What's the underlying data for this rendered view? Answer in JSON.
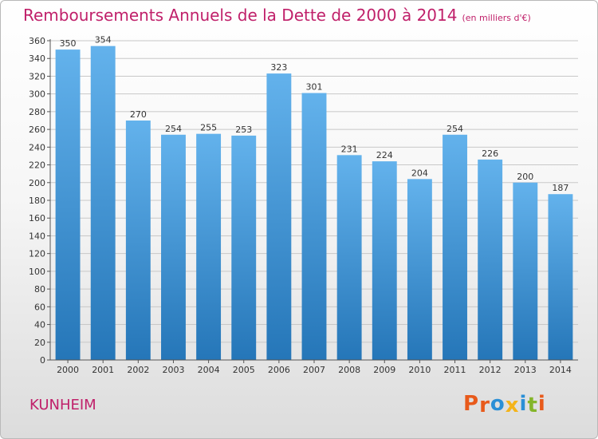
{
  "header": {
    "title": "Remboursements Annuels de la Dette de 2000 à 2014",
    "unit": "(en milliers d'€)"
  },
  "footer": {
    "commune": "KUNHEIM",
    "logo": "Proxiti"
  },
  "colors": {
    "title": "#c0206a",
    "bar_top": "#63b2ec",
    "bar_bottom": "#2576b8",
    "grid": "#c8c8c8",
    "logo_letters": [
      "#e85a1b",
      "#e85a1b",
      "#2a8fd6",
      "#f4b41a",
      "#2a8fd6",
      "#84b52a",
      "#e85a1b"
    ]
  },
  "chart_data": {
    "type": "bar",
    "title": "Remboursements Annuels de la Dette de 2000 à 2014",
    "xlabel": "",
    "ylabel": "",
    "categories": [
      "2000",
      "2001",
      "2002",
      "2003",
      "2004",
      "2005",
      "2006",
      "2007",
      "2008",
      "2009",
      "2010",
      "2011",
      "2012",
      "2013",
      "2014"
    ],
    "values": [
      350,
      354,
      270,
      254,
      255,
      253,
      323,
      301,
      231,
      224,
      204,
      254,
      226,
      200,
      187
    ],
    "ylim": [
      0,
      360
    ],
    "yticks": [
      0,
      20,
      40,
      60,
      80,
      100,
      120,
      140,
      160,
      180,
      200,
      220,
      240,
      260,
      280,
      300,
      320,
      340,
      360
    ],
    "grid": true,
    "data_labels": true
  }
}
